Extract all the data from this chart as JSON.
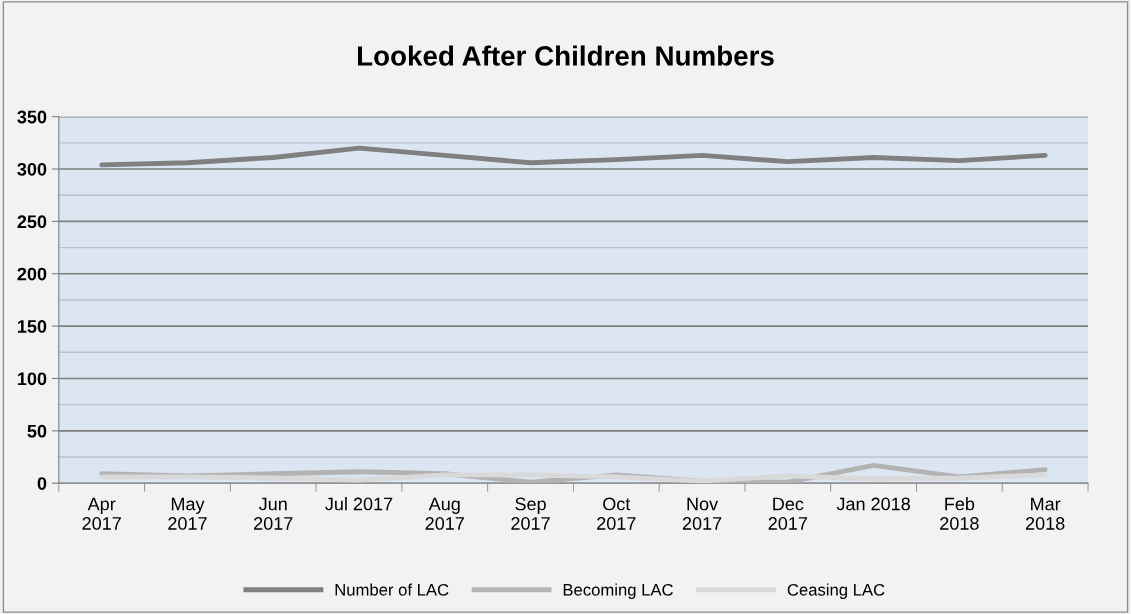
{
  "chart_data": {
    "type": "line",
    "title": "Looked After Children Numbers",
    "categories": [
      "Apr\n2017",
      "May\n2017",
      "Jun\n2017",
      "Jul 2017",
      "Aug\n2017",
      "Sep\n2017",
      "Oct\n2017",
      "Nov\n2017",
      "Dec\n2017",
      "Jan 2018",
      "Feb\n2018",
      "Mar\n2018"
    ],
    "series": [
      {
        "name": "Number of LAC",
        "color": "#808080",
        "values": [
          304,
          306,
          311,
          320,
          313,
          306,
          309,
          313,
          307,
          311,
          308,
          313
        ]
      },
      {
        "name": "Becoming LAC",
        "color": "#b3b3b3",
        "values": [
          9,
          7,
          9,
          11,
          9,
          1,
          8,
          2,
          1,
          17,
          6,
          13
        ]
      },
      {
        "name": "Ceasing LAC",
        "color": "#d9d9d9",
        "values": [
          6,
          6,
          5,
          3,
          8,
          8,
          6,
          2,
          7,
          4,
          5,
          8
        ]
      }
    ],
    "ylim": [
      0,
      350
    ],
    "yticks": [
      0,
      50,
      100,
      150,
      200,
      250,
      300,
      350
    ],
    "grid": "y",
    "legend": "bottom",
    "marker": "none",
    "line_style": "solid"
  }
}
